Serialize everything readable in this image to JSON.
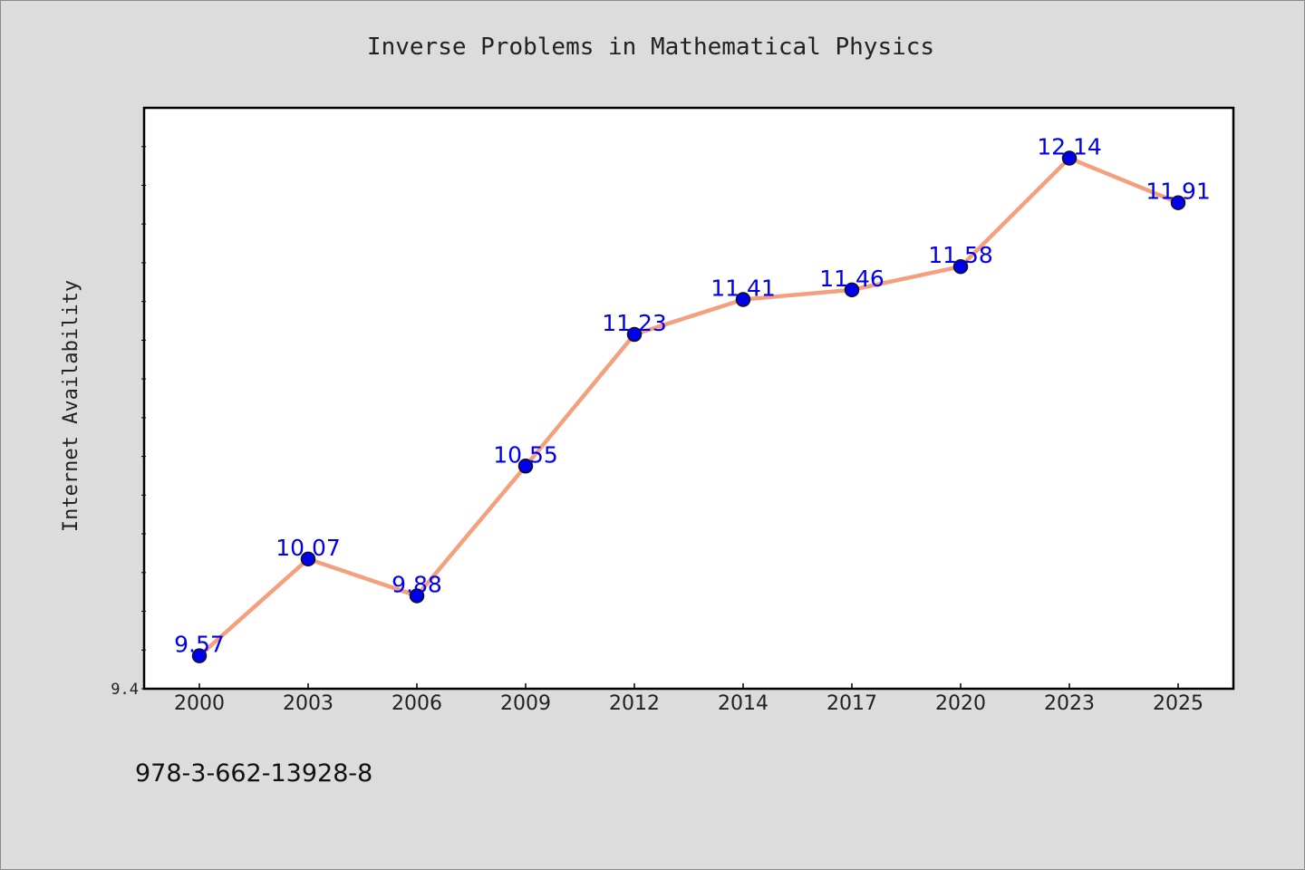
{
  "chart_data": {
    "type": "line",
    "title": "Inverse Problems in Mathematical Physics",
    "xlabel": "",
    "ylabel": "Internet Availability",
    "categories": [
      "2000",
      "2003",
      "2006",
      "2009",
      "2012",
      "2014",
      "2017",
      "2020",
      "2023",
      "2025"
    ],
    "values": [
      9.57,
      10.07,
      9.88,
      10.55,
      11.23,
      11.41,
      11.46,
      11.58,
      12.14,
      11.91
    ],
    "value_labels": [
      "9.57",
      "10.07",
      "9.88",
      "10.55",
      "11.23",
      "11.41",
      "11.46",
      "11.58",
      "12.14",
      "11.91"
    ],
    "ylim": [
      9.4,
      12.4
    ],
    "ytick_labels": [
      "9.4"
    ],
    "grid": false,
    "line_color": "#f4a07e",
    "marker_color": "#0000ee",
    "label_color": "#0000ee"
  },
  "footer": {
    "isbn": "978-3-662-13928-8"
  }
}
